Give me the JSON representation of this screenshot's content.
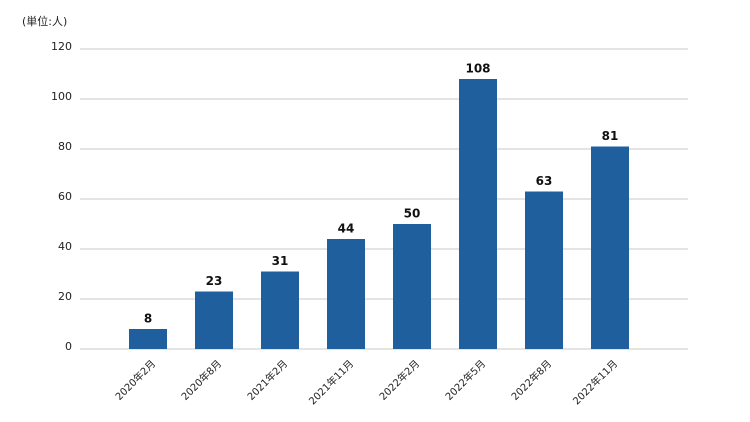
{
  "chart_data": {
    "type": "bar",
    "unit_label": "(単位:人)",
    "categories": [
      "2020年2月",
      "2020年8月",
      "2021年2月",
      "2021年11月",
      "2022年2月",
      "2022年5月",
      "2022年8月",
      "2022年11月"
    ],
    "values": [
      8,
      23,
      31,
      44,
      50,
      108,
      63,
      81
    ],
    "color": "#1f5f9e",
    "ylim": [
      0,
      120
    ],
    "yticks": [
      0,
      20,
      40,
      60,
      80,
      100,
      120
    ],
    "grid": true
  }
}
